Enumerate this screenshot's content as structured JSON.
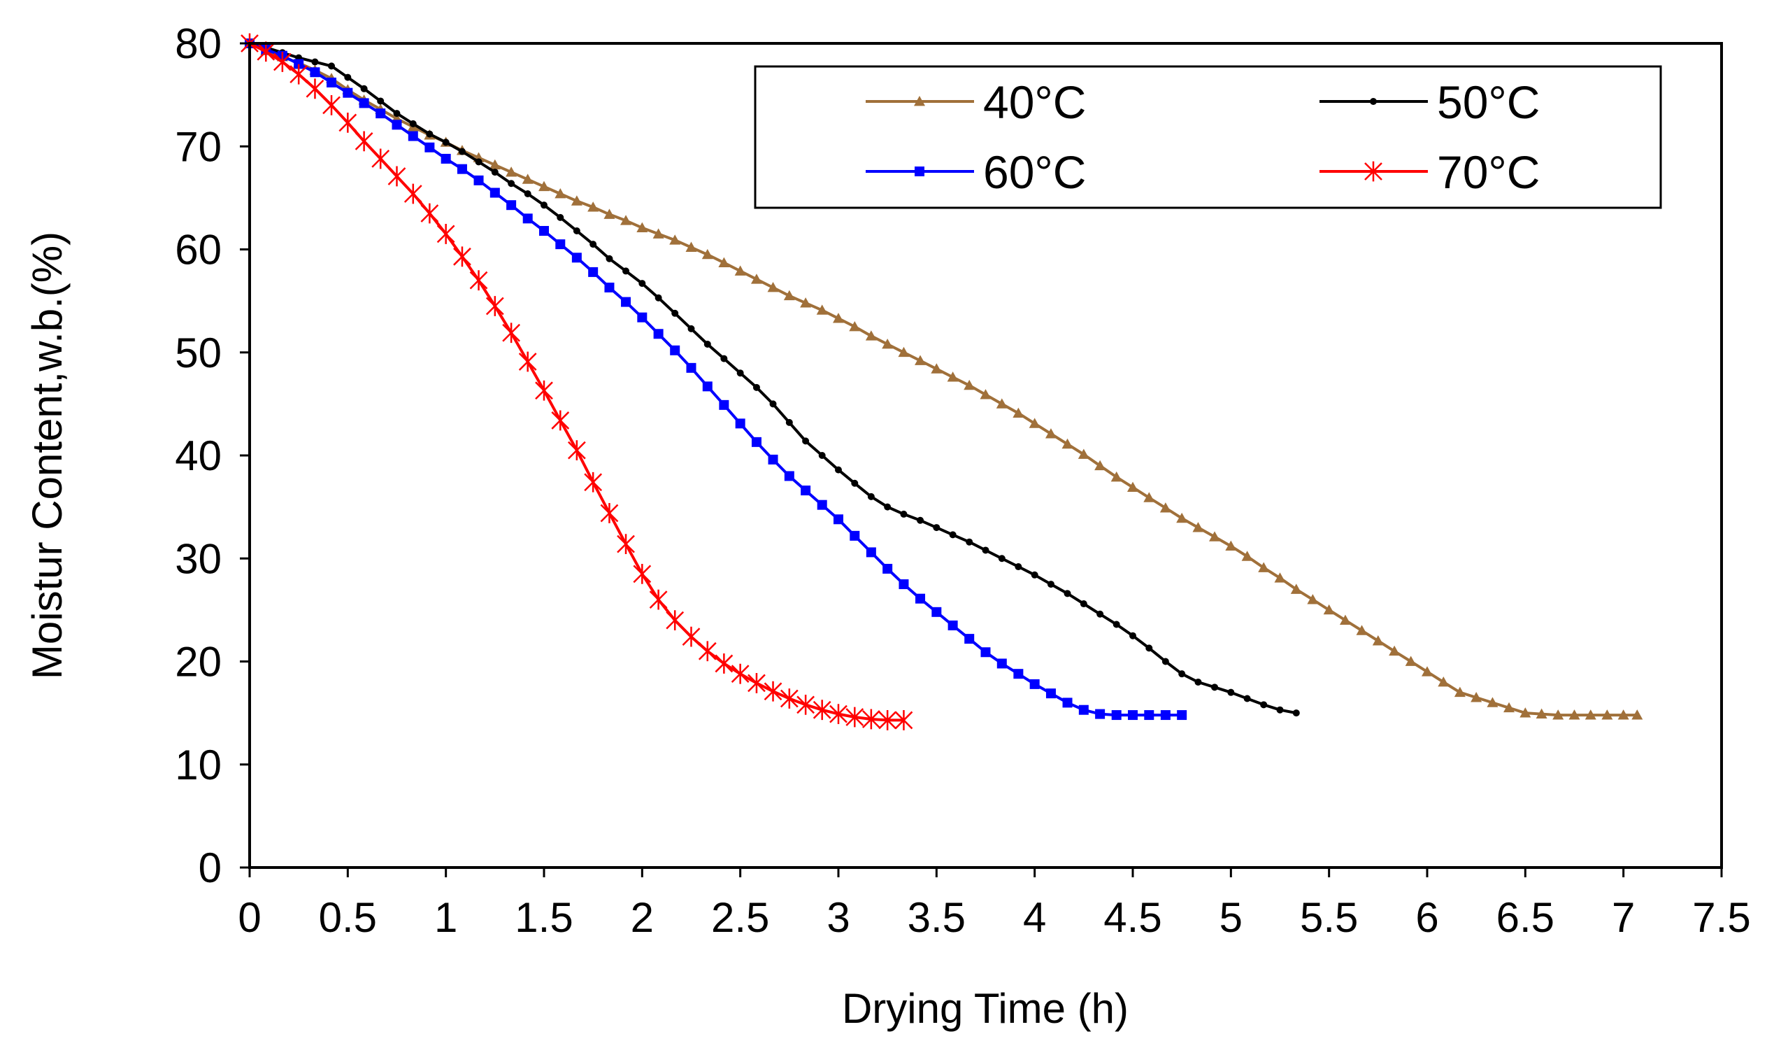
{
  "chart_data": {
    "type": "line",
    "title": "",
    "xlabel": "Drying Time (h)",
    "ylabel": "Moistur Content,w.b.(%)",
    "xlim": [
      0,
      7.5
    ],
    "ylim": [
      0,
      80
    ],
    "xticks": [
      0,
      0.5,
      1,
      1.5,
      2,
      2.5,
      3,
      3.5,
      4,
      4.5,
      5,
      5.5,
      6,
      6.5,
      7,
      7.5
    ],
    "xtick_labels": [
      "0",
      "0.5",
      "1",
      "1.5",
      "2",
      "2.5",
      "3",
      "3.5",
      "4",
      "4.5",
      "5",
      "5.5",
      "6",
      "6.5",
      "7",
      "7.5"
    ],
    "yticks": [
      0,
      10,
      20,
      30,
      40,
      50,
      60,
      70,
      80
    ],
    "ytick_labels": [
      "0",
      "10",
      "20",
      "30",
      "40",
      "50",
      "60",
      "70",
      "80"
    ],
    "grid": false,
    "legend": {
      "position": "top-right",
      "columns": 2,
      "bordered": true
    },
    "series": [
      {
        "name": "40°C",
        "color": "#A0703A",
        "marker": "triangle",
        "x": [
          0,
          0.083,
          0.167,
          0.25,
          0.333,
          0.417,
          0.5,
          0.583,
          0.667,
          0.75,
          0.833,
          0.917,
          1.0,
          1.083,
          1.167,
          1.25,
          1.333,
          1.417,
          1.5,
          1.583,
          1.667,
          1.75,
          1.833,
          1.917,
          2.0,
          2.083,
          2.167,
          2.25,
          2.333,
          2.417,
          2.5,
          2.583,
          2.667,
          2.75,
          2.833,
          2.917,
          3.0,
          3.083,
          3.167,
          3.25,
          3.333,
          3.417,
          3.5,
          3.583,
          3.667,
          3.75,
          3.833,
          3.917,
          4.0,
          4.083,
          4.167,
          4.25,
          4.333,
          4.417,
          4.5,
          4.583,
          4.667,
          4.75,
          4.833,
          4.917,
          5.0,
          5.083,
          5.167,
          5.25,
          5.333,
          5.417,
          5.5,
          5.583,
          5.667,
          5.75,
          5.833,
          5.917,
          6.0,
          6.083,
          6.167,
          6.25,
          6.333,
          6.417,
          6.5,
          6.583,
          6.667,
          6.75,
          6.833,
          6.917,
          7.0,
          7.07
        ],
        "y": [
          80.0,
          79.3,
          78.7,
          78.1,
          77.4,
          76.6,
          75.5,
          74.5,
          73.6,
          72.7,
          71.9,
          71.1,
          70.4,
          69.6,
          68.9,
          68.2,
          67.5,
          66.8,
          66.1,
          65.4,
          64.7,
          64.1,
          63.4,
          62.8,
          62.1,
          61.5,
          60.9,
          60.2,
          59.5,
          58.7,
          57.9,
          57.1,
          56.3,
          55.5,
          54.8,
          54.1,
          53.3,
          52.5,
          51.6,
          50.8,
          50.0,
          49.2,
          48.4,
          47.6,
          46.8,
          45.9,
          45.0,
          44.1,
          43.1,
          42.1,
          41.1,
          40.1,
          39.0,
          37.9,
          36.9,
          35.9,
          34.9,
          33.9,
          33.0,
          32.1,
          31.2,
          30.2,
          29.1,
          28.1,
          27.0,
          26.0,
          25.0,
          24.0,
          23.0,
          22.0,
          21.0,
          20.0,
          19.0,
          18.0,
          17.0,
          16.5,
          16.0,
          15.5,
          15.0,
          14.9,
          14.8,
          14.8,
          14.8,
          14.8,
          14.8,
          14.8
        ]
      },
      {
        "name": "50°C",
        "color": "#000000",
        "marker": "dot",
        "x": [
          0,
          0.083,
          0.167,
          0.25,
          0.333,
          0.417,
          0.5,
          0.583,
          0.667,
          0.75,
          0.833,
          0.917,
          1.0,
          1.083,
          1.167,
          1.25,
          1.333,
          1.417,
          1.5,
          1.583,
          1.667,
          1.75,
          1.833,
          1.917,
          2.0,
          2.083,
          2.167,
          2.25,
          2.333,
          2.417,
          2.5,
          2.583,
          2.667,
          2.75,
          2.833,
          2.917,
          3.0,
          3.083,
          3.167,
          3.25,
          3.333,
          3.417,
          3.5,
          3.583,
          3.667,
          3.75,
          3.833,
          3.917,
          4.0,
          4.083,
          4.167,
          4.25,
          4.333,
          4.417,
          4.5,
          4.583,
          4.667,
          4.75,
          4.833,
          4.917,
          5.0,
          5.083,
          5.167,
          5.25,
          5.333
        ],
        "y": [
          80.0,
          79.6,
          79.1,
          78.6,
          78.2,
          77.8,
          76.7,
          75.6,
          74.4,
          73.2,
          72.2,
          71.2,
          70.4,
          69.5,
          68.5,
          67.5,
          66.4,
          65.4,
          64.3,
          63.1,
          61.8,
          60.5,
          59.1,
          57.9,
          56.7,
          55.3,
          53.8,
          52.3,
          50.8,
          49.4,
          48.0,
          46.6,
          45.0,
          43.2,
          41.4,
          40.0,
          38.6,
          37.3,
          36.0,
          35.0,
          34.3,
          33.7,
          33.0,
          32.3,
          31.6,
          30.8,
          30.0,
          29.2,
          28.4,
          27.5,
          26.6,
          25.6,
          24.6,
          23.6,
          22.5,
          21.3,
          20.0,
          18.8,
          18.0,
          17.5,
          17.0,
          16.4,
          15.8,
          15.3,
          15.0
        ]
      },
      {
        "name": "60°C",
        "color": "#0000FF",
        "marker": "square",
        "x": [
          0,
          0.083,
          0.167,
          0.25,
          0.333,
          0.417,
          0.5,
          0.583,
          0.667,
          0.75,
          0.833,
          0.917,
          1.0,
          1.083,
          1.167,
          1.25,
          1.333,
          1.417,
          1.5,
          1.583,
          1.667,
          1.75,
          1.833,
          1.917,
          2.0,
          2.083,
          2.167,
          2.25,
          2.333,
          2.417,
          2.5,
          2.583,
          2.667,
          2.75,
          2.833,
          2.917,
          3.0,
          3.083,
          3.167,
          3.25,
          3.333,
          3.417,
          3.5,
          3.583,
          3.667,
          3.75,
          3.833,
          3.917,
          4.0,
          4.083,
          4.167,
          4.25,
          4.333,
          4.417,
          4.5,
          4.583,
          4.667,
          4.75
        ],
        "y": [
          80.0,
          79.4,
          78.8,
          78.0,
          77.2,
          76.2,
          75.2,
          74.2,
          73.2,
          72.1,
          71.0,
          69.9,
          68.8,
          67.8,
          66.7,
          65.5,
          64.3,
          63.0,
          61.8,
          60.5,
          59.2,
          57.8,
          56.3,
          54.9,
          53.4,
          51.8,
          50.2,
          48.5,
          46.7,
          44.9,
          43.1,
          41.3,
          39.6,
          38.0,
          36.6,
          35.2,
          33.8,
          32.2,
          30.6,
          29.0,
          27.5,
          26.1,
          24.8,
          23.5,
          22.2,
          20.9,
          19.8,
          18.8,
          17.8,
          16.9,
          16.0,
          15.3,
          14.9,
          14.8,
          14.8,
          14.8,
          14.8,
          14.8
        ]
      },
      {
        "name": "70°C",
        "color": "#FF0000",
        "marker": "star",
        "x": [
          0,
          0.083,
          0.167,
          0.25,
          0.333,
          0.417,
          0.5,
          0.583,
          0.667,
          0.75,
          0.833,
          0.917,
          1.0,
          1.083,
          1.167,
          1.25,
          1.333,
          1.417,
          1.5,
          1.583,
          1.667,
          1.75,
          1.833,
          1.917,
          2.0,
          2.083,
          2.167,
          2.25,
          2.333,
          2.417,
          2.5,
          2.583,
          2.667,
          2.75,
          2.833,
          2.917,
          3.0,
          3.083,
          3.167,
          3.25,
          3.333
        ],
        "y": [
          80.0,
          79.2,
          78.2,
          77.0,
          75.6,
          74.0,
          72.3,
          70.5,
          68.8,
          67.1,
          65.4,
          63.5,
          61.5,
          59.3,
          57.0,
          54.5,
          51.9,
          49.1,
          46.3,
          43.4,
          40.5,
          37.4,
          34.4,
          31.4,
          28.5,
          26.0,
          24.0,
          22.4,
          21.0,
          19.8,
          18.8,
          17.9,
          17.1,
          16.4,
          15.8,
          15.3,
          14.9,
          14.6,
          14.4,
          14.3,
          14.3
        ]
      }
    ]
  }
}
